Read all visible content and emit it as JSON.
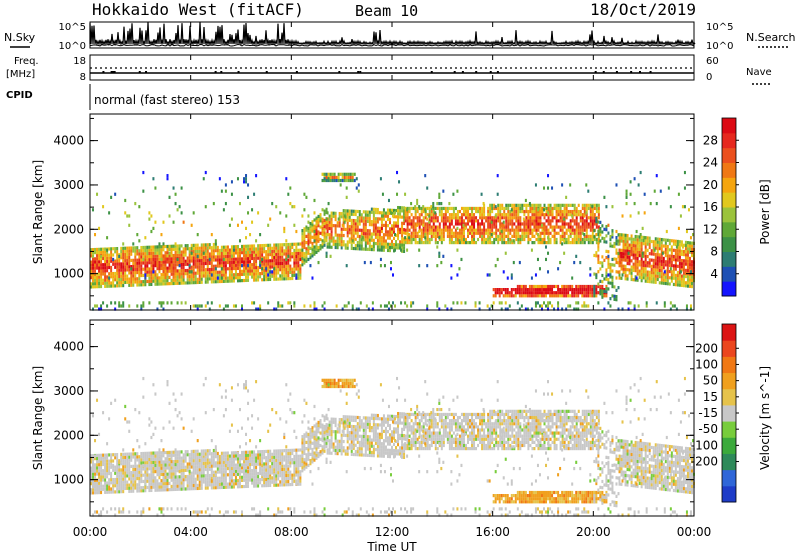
{
  "header": {
    "radar": "Hokkaido West (fitACF)",
    "beam": "Beam 10",
    "date": "18/Oct/2019"
  },
  "noise_panel": {
    "left_label": "N.Sky",
    "left_ticks": [
      "10^5",
      "10^0"
    ],
    "right_ticks": [
      "10^5",
      "10^0"
    ],
    "right_label": "N.Search"
  },
  "freq_panel": {
    "left_label_1": "Freq.",
    "left_label_2": "[MHz]",
    "left_ticks": [
      "18",
      "8"
    ],
    "right_ticks": [
      "60",
      "0"
    ],
    "right_label": "Nave"
  },
  "cpid_panel": {
    "label": "CPID",
    "mode_text": "normal (fast stereo) 153"
  },
  "x_axis": {
    "label": "Time UT",
    "ticks": [
      "00:00",
      "04:00",
      "08:00",
      "12:00",
      "16:00",
      "20:00",
      "00:00"
    ]
  },
  "chart_data": [
    {
      "type": "heatmap",
      "ylabel": "Slant Range [km]",
      "yticks": [
        "1000",
        "2000",
        "3000",
        "4000"
      ],
      "ylim": [
        180,
        4600
      ],
      "xlim_hours": [
        0,
        24
      ],
      "colorbar": {
        "label": "Power [dB]",
        "ticks": [
          "4",
          "8",
          "12",
          "16",
          "20",
          "24",
          "28"
        ],
        "range": [
          0,
          32
        ],
        "colors": [
          "#1414ff",
          "#1e50b4",
          "#2d7d73",
          "#3c9146",
          "#5fa837",
          "#9bc33c",
          "#e1c81e",
          "#f5a50f",
          "#f07814",
          "#eb501e",
          "#e6281e",
          "#dc0a14"
        ]
      }
    },
    {
      "type": "heatmap",
      "ylabel": "Slant Range [km]",
      "yticks": [
        "1000",
        "2000",
        "3000",
        "4000"
      ],
      "ylim": [
        180,
        4600
      ],
      "xlim_hours": [
        0,
        24
      ],
      "colorbar": {
        "label": "Velocity [m s^-1]",
        "ticks": [
          "200",
          "100",
          "50",
          "15",
          "-15",
          "-50",
          "-100",
          "-200"
        ],
        "colors": [
          "#1e3cc8",
          "#2f66d8",
          "#2e8a5a",
          "#3caa3c",
          "#78cd3c",
          "#c8c8c8",
          "#e6c34b",
          "#f0a01e",
          "#f07814",
          "#eb461e",
          "#dc1414"
        ]
      }
    }
  ]
}
